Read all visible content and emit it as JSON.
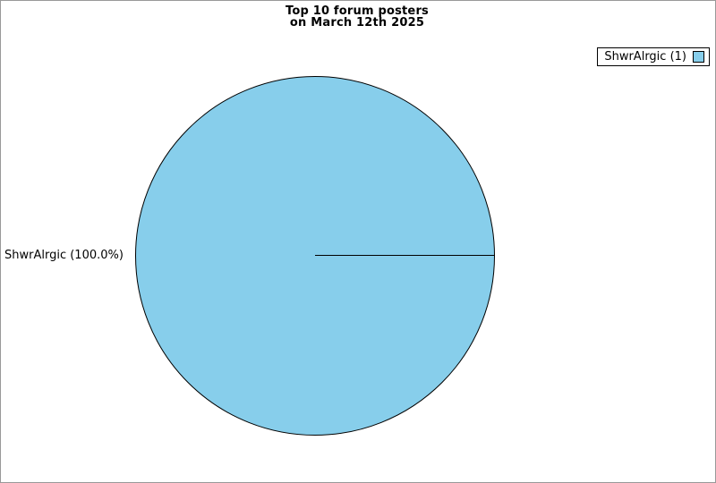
{
  "title": {
    "line1": "Top 10 forum posters",
    "line2": "on March 12th 2025"
  },
  "legend": {
    "position": "top-right",
    "entries": [
      {
        "label": "ShwrAlrgic (1)",
        "color": "#87CEEB"
      }
    ]
  },
  "slice_labels": [
    {
      "text": "ShwrAlrgic (100.0%)"
    }
  ],
  "colors": {
    "slice_fill": "#87CEEB",
    "outline": "#000000",
    "canvas_border": "#999999",
    "background": "#ffffff"
  },
  "chart_data": {
    "type": "pie",
    "title": "Top 10 forum posters on March 12th 2025",
    "categories": [
      "ShwrAlrgic"
    ],
    "values": [
      1
    ],
    "percentages": [
      100.0
    ],
    "colors": [
      "#87CEEB"
    ],
    "legend_entries": [
      "ShwrAlrgic (1)"
    ],
    "legend_position": "top-right",
    "start_angle_deg": 0,
    "grid": false
  }
}
